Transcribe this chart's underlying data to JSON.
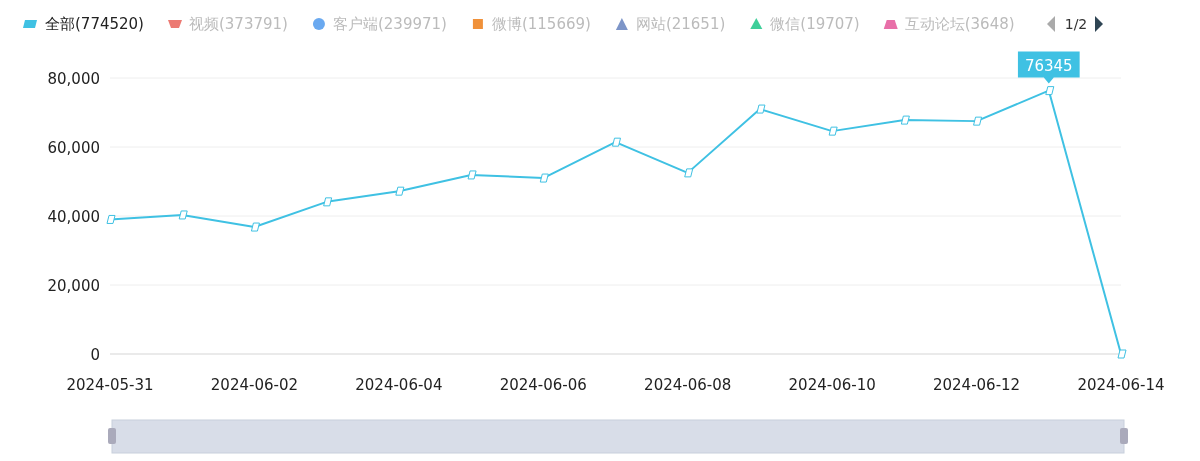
{
  "chart_data": {
    "type": "line",
    "x": [
      "2024-05-31",
      "2024-06-01",
      "2024-06-02",
      "2024-06-03",
      "2024-06-04",
      "2024-06-05",
      "2024-06-06",
      "2024-06-07",
      "2024-06-08",
      "2024-06-09",
      "2024-06-10",
      "2024-06-11",
      "2024-06-12",
      "2024-06-13",
      "2024-06-14"
    ],
    "series": [
      {
        "name": "全部(774520)",
        "color": "#3fc1e3",
        "values": [
          39000,
          40300,
          36800,
          44100,
          47200,
          51900,
          51000,
          61400,
          52500,
          71000,
          64600,
          67800,
          67500,
          76345,
          0
        ]
      },
      {
        "name": "视频(373791)",
        "color": "#ec7a73",
        "values": [
          null,
          null,
          null,
          null,
          null,
          null,
          null,
          null,
          null,
          null,
          null,
          null,
          null,
          null,
          null
        ]
      },
      {
        "name": "客户端(239971)",
        "color": "#6aa9f0",
        "values": [
          null,
          null,
          null,
          null,
          null,
          null,
          null,
          null,
          null,
          null,
          null,
          null,
          null,
          null,
          null
        ]
      },
      {
        "name": "微博(115669)",
        "color": "#f0913a",
        "values": [
          null,
          null,
          null,
          null,
          null,
          null,
          null,
          null,
          null,
          null,
          null,
          null,
          null,
          null,
          null
        ]
      },
      {
        "name": "网站(21651)",
        "color": "#7d95c8",
        "values": [
          null,
          null,
          null,
          null,
          null,
          null,
          null,
          null,
          null,
          null,
          null,
          null,
          null,
          null,
          null
        ]
      },
      {
        "name": "微信(19707)",
        "color": "#3fcf9a",
        "values": [
          null,
          null,
          null,
          null,
          null,
          null,
          null,
          null,
          null,
          null,
          null,
          null,
          null,
          null,
          null
        ]
      },
      {
        "name": "互动论坛(3648)",
        "color": "#e86fa8",
        "values": [
          null,
          null,
          null,
          null,
          null,
          null,
          null,
          null,
          null,
          null,
          null,
          null,
          null,
          null,
          null
        ]
      }
    ],
    "xlim": [
      "2024-05-31",
      "2024-06-14"
    ],
    "xticks": [
      "2024-05-31",
      "2024-06-02",
      "2024-06-04",
      "2024-06-06",
      "2024-06-08",
      "2024-06-10",
      "2024-06-12",
      "2024-06-14"
    ],
    "ylim": [
      0,
      80000
    ],
    "yticks": [
      {
        "value": 0,
        "label": "0"
      },
      {
        "value": 20000,
        "label": "20,000"
      },
      {
        "value": 40000,
        "label": "40,000"
      },
      {
        "value": 60000,
        "label": "60,000"
      },
      {
        "value": 80000,
        "label": "80,000"
      }
    ],
    "grid": "y",
    "legend": "top left",
    "marker": "diamond",
    "line_style": "solid",
    "annotations": [
      {
        "text": "76345",
        "x": "2024-06-13",
        "y": 76345
      },
      "1/2"
    ]
  }
}
